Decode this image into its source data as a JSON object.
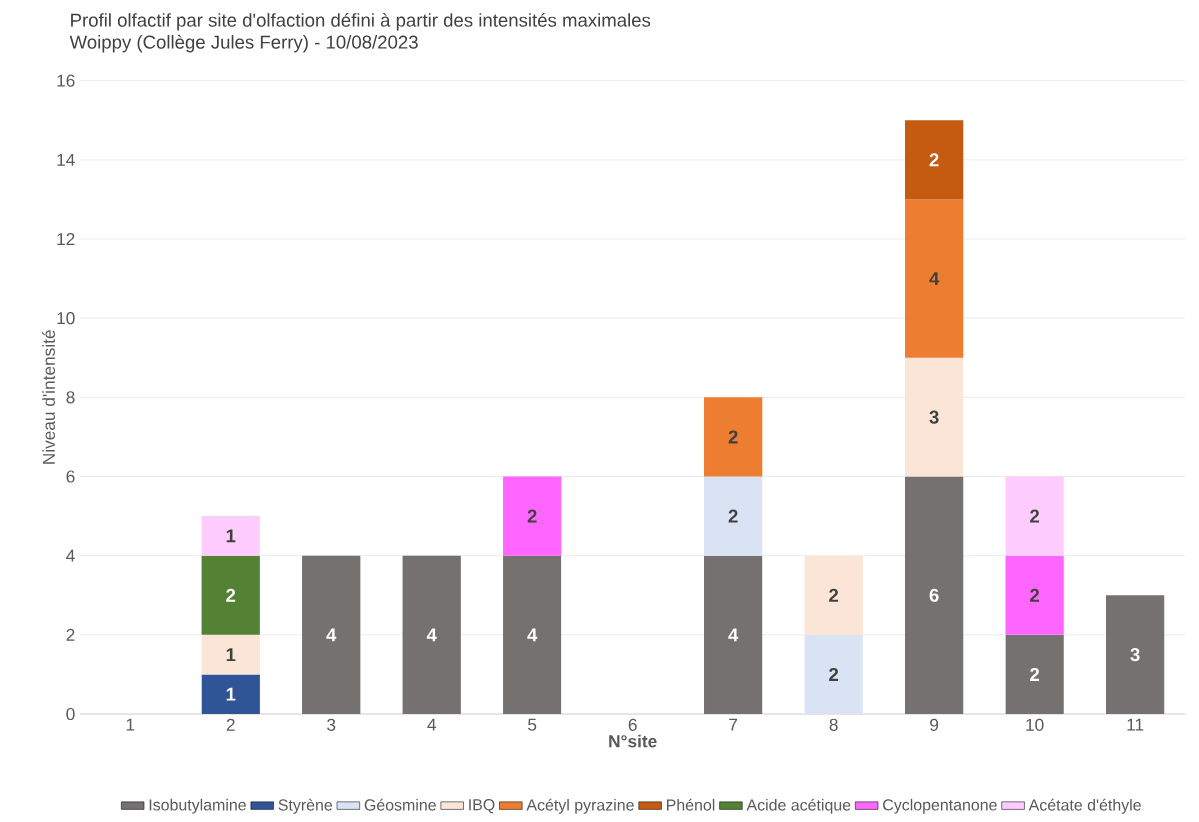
{
  "chart_data": {
    "type": "bar",
    "stacked": true,
    "title": "Profil olfactif par site d'olfaction défini à partir des intensités maximales",
    "subtitle": "Woippy (Collège Jules Ferry) - 10/08/2023",
    "xlabel": "N°site",
    "ylabel": "Niveau d'intensité",
    "categories": [
      "1",
      "2",
      "3",
      "4",
      "5",
      "6",
      "7",
      "8",
      "9",
      "10",
      "11"
    ],
    "series": [
      {
        "name": "Isobutylamine",
        "color": "#767171",
        "values": [
          null,
          null,
          4,
          4,
          4,
          null,
          4,
          null,
          6,
          2,
          3
        ]
      },
      {
        "name": "Styrène",
        "color": "#2f5597",
        "values": [
          null,
          1,
          null,
          null,
          null,
          null,
          null,
          null,
          null,
          null,
          null
        ]
      },
      {
        "name": "Géosmine",
        "color": "#dae3f3",
        "values": [
          null,
          null,
          null,
          null,
          null,
          null,
          2,
          2,
          null,
          null,
          null
        ]
      },
      {
        "name": "IBQ",
        "color": "#fbe5d6",
        "values": [
          null,
          1,
          null,
          null,
          null,
          null,
          null,
          2,
          3,
          null,
          null
        ]
      },
      {
        "name": "Acétyl pyrazine",
        "color": "#ed7d31",
        "values": [
          null,
          null,
          null,
          null,
          null,
          null,
          2,
          null,
          4,
          null,
          null
        ]
      },
      {
        "name": "Phénol",
        "color": "#c55a11",
        "values": [
          null,
          null,
          null,
          null,
          null,
          null,
          null,
          null,
          2,
          null,
          null
        ]
      },
      {
        "name": "Acide acétique",
        "color": "#548235",
        "values": [
          null,
          2,
          null,
          null,
          null,
          null,
          null,
          null,
          null,
          null,
          null
        ]
      },
      {
        "name": "Cyclopentanone",
        "color": "#ff66ff",
        "values": [
          null,
          null,
          null,
          null,
          2,
          null,
          null,
          null,
          null,
          2,
          null
        ]
      },
      {
        "name": "Acétate d'éthyle",
        "color": "#ffccff",
        "values": [
          null,
          1,
          null,
          null,
          null,
          null,
          null,
          null,
          null,
          2,
          null
        ]
      }
    ],
    "ylim": [
      0,
      16
    ],
    "yticks": [
      0,
      2,
      4,
      6,
      8,
      10,
      12,
      14,
      16
    ],
    "grid": "y",
    "legend": "bottom",
    "data_labels": true
  }
}
